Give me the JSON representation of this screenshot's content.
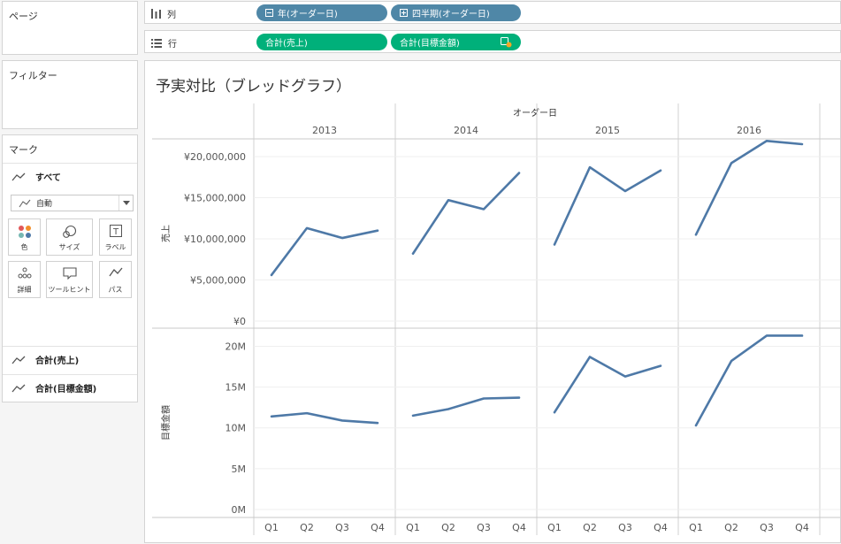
{
  "panes": {
    "pages": "ページ",
    "filters": "フィルター",
    "marks": "マーク"
  },
  "marks": {
    "all_label": "すべて",
    "mark_type": "自動",
    "buttons": [
      "色",
      "サイズ",
      "ラベル",
      "詳細",
      "ツールヒント",
      "パス"
    ],
    "measures": [
      "合計(売上)",
      "合計(目標金額)"
    ]
  },
  "shelves": {
    "columns_label": "列",
    "rows_label": "行",
    "columns_pills": [
      "年(オーダー日)",
      "四半期(オーダー日)"
    ],
    "rows_pills": [
      "合計(売上)",
      "合計(目標金額)"
    ]
  },
  "view": {
    "title": "予実対比（ブレッドグラフ）"
  },
  "colors": {
    "line": "#4e79a7",
    "pill_dimension": "#4f87a7",
    "pill_measure": "#00b07a"
  },
  "chart_data": {
    "type": "line",
    "column_header": "オーダー日",
    "years": [
      "2013",
      "2014",
      "2015",
      "2016"
    ],
    "quarters": [
      "Q1",
      "Q2",
      "Q3",
      "Q4"
    ],
    "panes": [
      {
        "ylabel": "売上",
        "ylim": [
          0,
          21500000
        ],
        "ticks": [
          0,
          5000000,
          10000000,
          15000000,
          20000000
        ],
        "tick_labels": [
          "¥0",
          "¥5,000,000",
          "¥10,000,000",
          "¥15,000,000",
          "¥20,000,000"
        ],
        "series": [
          {
            "year": "2013",
            "values": [
              5600000,
              11300000,
              10100000,
              11000000
            ]
          },
          {
            "year": "2014",
            "values": [
              8200000,
              14700000,
              13600000,
              18000000
            ]
          },
          {
            "year": "2015",
            "values": [
              9300000,
              18700000,
              15800000,
              18300000
            ]
          },
          {
            "year": "2016",
            "values": [
              10500000,
              19200000,
              21900000,
              21500000
            ]
          }
        ]
      },
      {
        "ylabel": "目標金額",
        "ylim": [
          0,
          22000000
        ],
        "ticks": [
          0,
          5000000,
          10000000,
          15000000,
          20000000
        ],
        "tick_labels": [
          "0M",
          "5M",
          "10M",
          "15M",
          "20M"
        ],
        "series": [
          {
            "year": "2013",
            "values": [
              11400000,
              11800000,
              10900000,
              10600000
            ]
          },
          {
            "year": "2014",
            "values": [
              11500000,
              12300000,
              13600000,
              13700000
            ]
          },
          {
            "year": "2015",
            "values": [
              11900000,
              18700000,
              16300000,
              17600000
            ]
          },
          {
            "year": "2016",
            "values": [
              10300000,
              18200000,
              21300000,
              21300000
            ]
          }
        ]
      }
    ]
  }
}
